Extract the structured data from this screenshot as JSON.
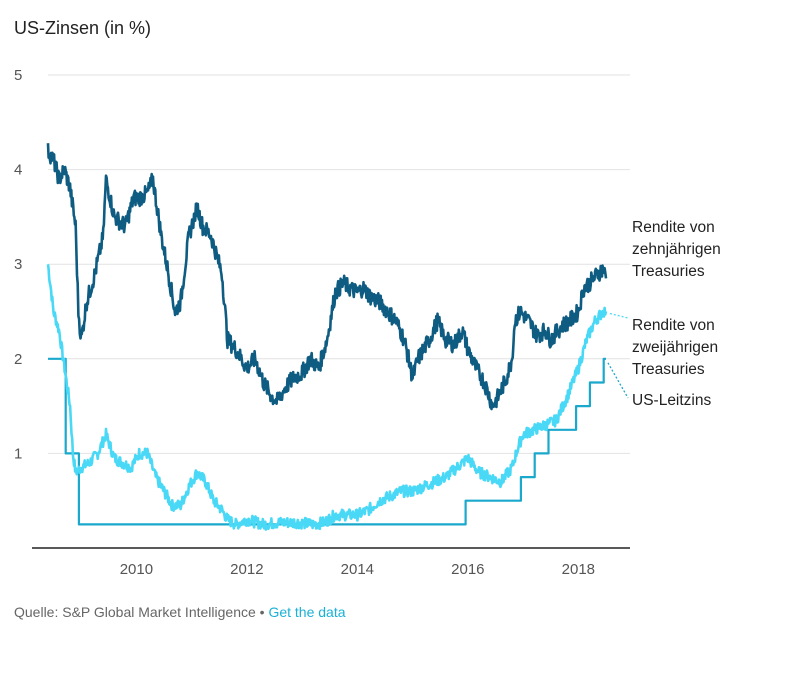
{
  "title": "US-Zinsen (in %)",
  "source": {
    "text": "Quelle: S&P Global Market Intelligence",
    "separator": "•",
    "link": "Get the data"
  },
  "colors": {
    "ten_year": "#0f5c82",
    "two_year": "#49d9f6",
    "fed_funds": "#1aa8cc",
    "grid": "#e2e2e2",
    "axis": "#222222"
  },
  "chart_data": {
    "type": "line",
    "title": "US-Zinsen (in %)",
    "xlabel": "",
    "ylabel": "",
    "xlim": [
      2008.4,
      2018.7
    ],
    "ylim": [
      0,
      5
    ],
    "y_ticks": [
      1,
      2,
      3,
      4,
      5
    ],
    "x_ticks": [
      2010,
      2012,
      2014,
      2016,
      2018
    ],
    "series": [
      {
        "name": "Rendite von zehnjährigen Treasuries",
        "label_lines": [
          "Rendite von",
          "zehnjährigen",
          "Treasuries"
        ],
        "color": "#0f5c82",
        "x": [
          2008.4,
          2008.5,
          2008.6,
          2008.7,
          2008.8,
          2008.9,
          2008.95,
          2009.0,
          2009.1,
          2009.25,
          2009.4,
          2009.45,
          2009.6,
          2009.8,
          2009.95,
          2010.05,
          2010.2,
          2010.3,
          2010.45,
          2010.55,
          2010.7,
          2010.8,
          2010.95,
          2011.1,
          2011.2,
          2011.35,
          2011.45,
          2011.55,
          2011.65,
          2011.8,
          2012.0,
          2012.15,
          2012.3,
          2012.45,
          2012.55,
          2012.7,
          2012.85,
          2013.0,
          2013.15,
          2013.3,
          2013.45,
          2013.6,
          2013.75,
          2013.85,
          2014.0,
          2014.1,
          2014.25,
          2014.4,
          2014.55,
          2014.7,
          2014.85,
          2015.0,
          2015.1,
          2015.2,
          2015.3,
          2015.45,
          2015.6,
          2015.75,
          2015.9,
          2016.0,
          2016.15,
          2016.3,
          2016.45,
          2016.55,
          2016.7,
          2016.8,
          2016.85,
          2016.95,
          2017.1,
          2017.25,
          2017.4,
          2017.5,
          2017.7,
          2017.85,
          2018.0,
          2018.1,
          2018.2,
          2018.35,
          2018.45,
          2018.5
        ],
        "y": [
          4.2,
          4.1,
          3.9,
          4.0,
          3.8,
          3.4,
          2.5,
          2.2,
          2.6,
          2.9,
          3.3,
          3.9,
          3.5,
          3.4,
          3.7,
          3.7,
          3.75,
          3.9,
          3.3,
          3.0,
          2.5,
          2.6,
          3.3,
          3.6,
          3.4,
          3.3,
          3.1,
          2.9,
          2.2,
          2.1,
          1.9,
          2.0,
          1.75,
          1.6,
          1.55,
          1.7,
          1.8,
          1.85,
          2.0,
          1.9,
          2.2,
          2.7,
          2.8,
          2.75,
          2.7,
          2.75,
          2.65,
          2.6,
          2.5,
          2.4,
          2.2,
          1.8,
          2.0,
          2.1,
          2.2,
          2.4,
          2.2,
          2.15,
          2.3,
          2.1,
          1.9,
          1.75,
          1.5,
          1.6,
          1.8,
          2.0,
          2.4,
          2.5,
          2.4,
          2.25,
          2.3,
          2.2,
          2.35,
          2.4,
          2.5,
          2.75,
          2.8,
          2.9,
          2.95,
          2.85
        ]
      },
      {
        "name": "Rendite von zweijährigen Treasuries",
        "label_lines": [
          "Rendite von",
          "zweijährigen",
          "Treasuries"
        ],
        "color": "#49d9f6",
        "x": [
          2008.4,
          2008.5,
          2008.6,
          2008.7,
          2008.8,
          2008.85,
          2008.9,
          2009.0,
          2009.15,
          2009.3,
          2009.45,
          2009.6,
          2009.75,
          2009.9,
          2010.05,
          2010.2,
          2010.35,
          2010.5,
          2010.65,
          2010.8,
          2010.95,
          2011.1,
          2011.25,
          2011.4,
          2011.55,
          2011.65,
          2011.8,
          2012.0,
          2012.3,
          2012.6,
          2012.9,
          2013.2,
          2013.4,
          2013.6,
          2013.8,
          2014.0,
          2014.2,
          2014.4,
          2014.6,
          2014.8,
          2015.0,
          2015.2,
          2015.4,
          2015.6,
          2015.8,
          2016.0,
          2016.2,
          2016.4,
          2016.6,
          2016.8,
          2016.9,
          2017.0,
          2017.2,
          2017.4,
          2017.6,
          2017.8,
          2018.0,
          2018.15,
          2018.3,
          2018.45,
          2018.5
        ],
        "y": [
          3.0,
          2.5,
          2.3,
          1.9,
          1.5,
          1.0,
          0.8,
          0.85,
          0.9,
          1.0,
          1.2,
          0.95,
          0.9,
          0.85,
          1.0,
          1.0,
          0.75,
          0.6,
          0.45,
          0.45,
          0.65,
          0.8,
          0.7,
          0.5,
          0.4,
          0.3,
          0.25,
          0.3,
          0.25,
          0.27,
          0.27,
          0.25,
          0.27,
          0.35,
          0.35,
          0.35,
          0.4,
          0.5,
          0.55,
          0.6,
          0.6,
          0.65,
          0.7,
          0.75,
          0.85,
          0.95,
          0.8,
          0.75,
          0.7,
          0.85,
          1.05,
          1.2,
          1.25,
          1.3,
          1.35,
          1.6,
          1.9,
          2.2,
          2.4,
          2.5,
          2.5
        ]
      },
      {
        "name": "US-Leitzins",
        "label_lines": [
          "US-Leitzins"
        ],
        "color": "#1aa8cc",
        "step": true,
        "x": [
          2008.4,
          2008.72,
          2008.88,
          2008.96,
          2015.96,
          2016.96,
          2017.21,
          2017.46,
          2017.96,
          2018.21,
          2018.46,
          2018.5
        ],
        "y": [
          2.0,
          1.0,
          1.0,
          0.25,
          0.5,
          0.75,
          1.0,
          1.25,
          1.5,
          1.75,
          2.0,
          2.0
        ]
      }
    ]
  }
}
